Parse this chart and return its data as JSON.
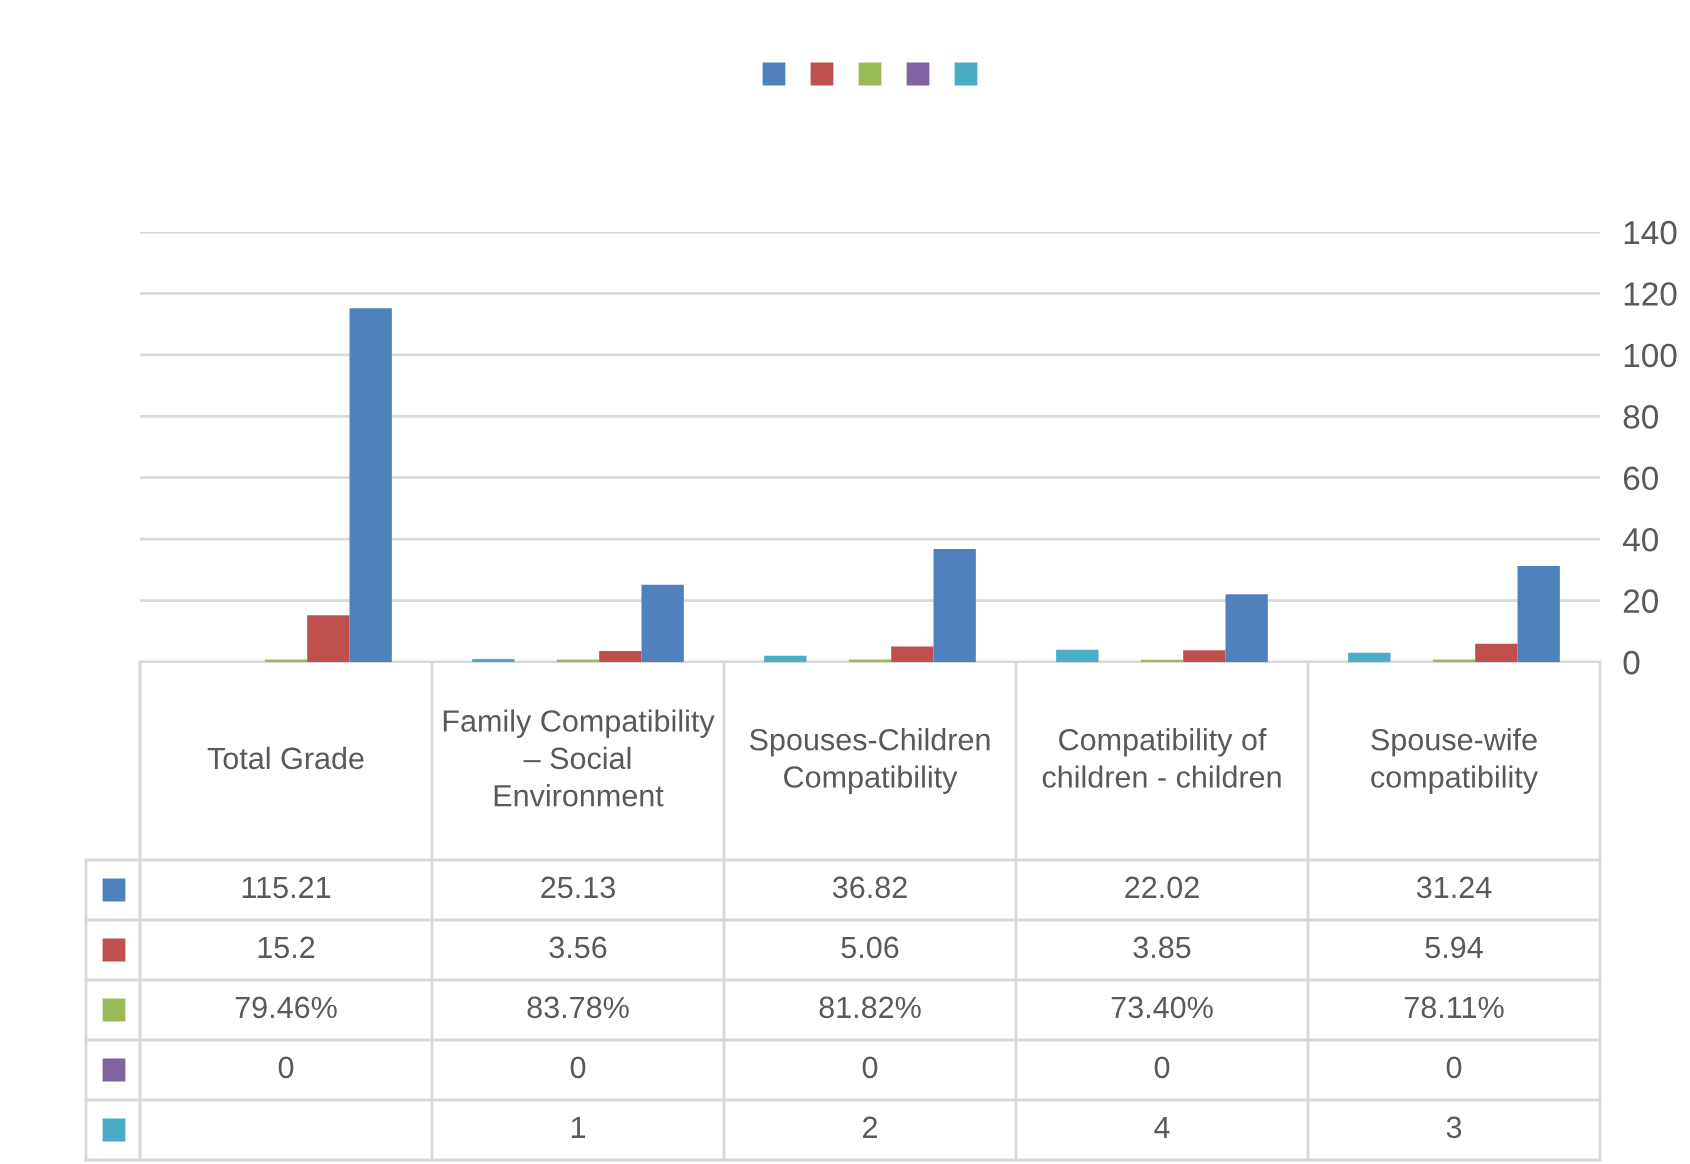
{
  "chart_data": {
    "type": "bar",
    "categories": [
      "Total Grade",
      "Family Compatibility – Social Environment",
      "Spouses-Children Compatibility",
      "Compatibility of children - children",
      "Spouse-wife compatibility"
    ],
    "series": [
      {
        "color": "#4f81bd",
        "values": [
          115.21,
          25.13,
          36.82,
          22.02,
          31.24
        ],
        "value_labels": [
          "115.21",
          "25.13",
          "36.82",
          "22.02",
          "31.24"
        ]
      },
      {
        "color": "#c0504d",
        "values": [
          15.2,
          3.56,
          5.06,
          3.85,
          5.94
        ],
        "value_labels": [
          "15.2",
          "3.56",
          "5.06",
          "3.85",
          "5.94"
        ]
      },
      {
        "color": "#9bbb59",
        "values": [
          0.7946,
          0.8378,
          0.8182,
          0.734,
          0.7811
        ],
        "value_labels": [
          "79.46%",
          "83.78%",
          "81.82%",
          "73.40%",
          "78.11%"
        ]
      },
      {
        "color": "#8064a2",
        "values": [
          0,
          0,
          0,
          0,
          0
        ],
        "value_labels": [
          "0",
          "0",
          "0",
          "0",
          "0"
        ]
      },
      {
        "color": "#4bacc6",
        "values": [
          null,
          1,
          2,
          4,
          3
        ],
        "value_labels": [
          null,
          "1",
          "2",
          "4",
          "3"
        ]
      }
    ],
    "ylim": [
      0,
      140
    ],
    "yticks": [
      0,
      20,
      40,
      60,
      80,
      100,
      120,
      140
    ],
    "grid": "y"
  }
}
